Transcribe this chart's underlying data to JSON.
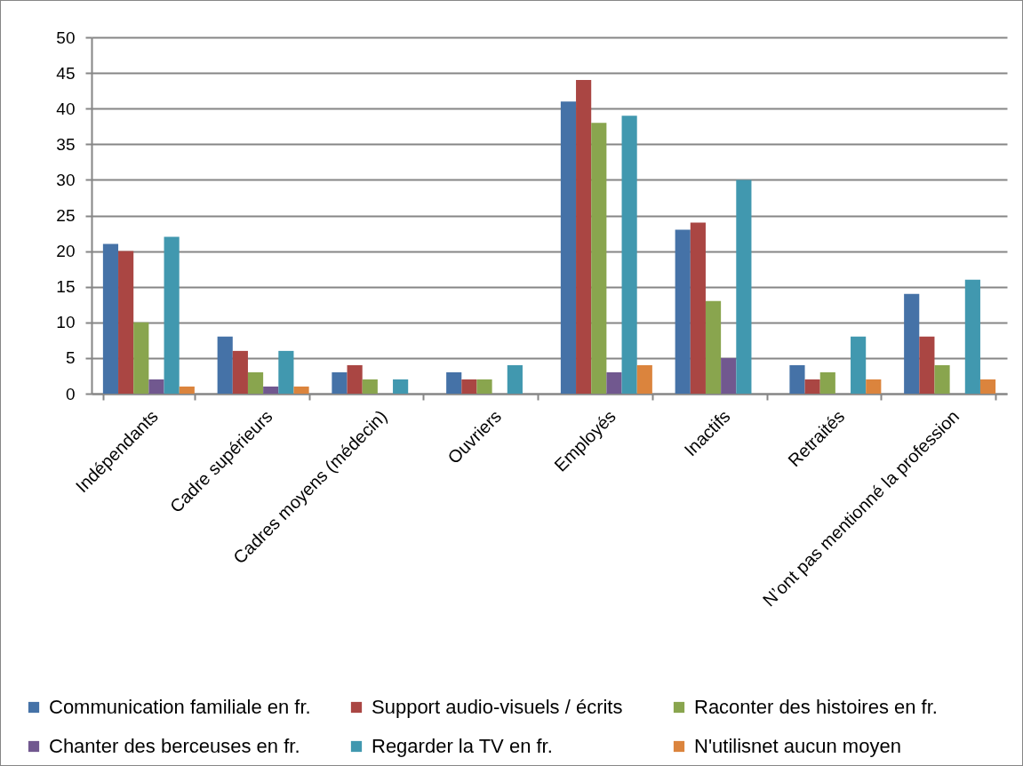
{
  "chart_data": {
    "type": "bar",
    "categories": [
      "Indépendants",
      "Cadre supérieurs",
      "Cadres moyens (médecin)",
      "Ouvriers",
      "Employés",
      "Inactifs",
      "Retraités",
      "N’ont pas mentionné  la profession"
    ],
    "series": [
      {
        "name": "Communication familiale en fr.",
        "color": "#4572a7",
        "values": [
          21,
          8,
          3,
          3,
          41,
          23,
          4,
          14
        ]
      },
      {
        "name": "Support audio-visuels / écrits",
        "color": "#aa4643",
        "values": [
          20,
          6,
          4,
          2,
          44,
          24,
          2,
          8
        ]
      },
      {
        "name": "Raconter des histoires en fr.",
        "color": "#89a54e",
        "values": [
          10,
          3,
          2,
          2,
          38,
          13,
          3,
          4
        ]
      },
      {
        "name": "Chanter des berceuses en fr.",
        "color": "#71588f",
        "values": [
          2,
          1,
          null,
          null,
          3,
          5,
          null,
          null
        ]
      },
      {
        "name": "Regarder la TV en fr.",
        "color": "#4198af",
        "values": [
          22,
          6,
          2,
          4,
          39,
          30,
          8,
          16
        ]
      },
      {
        "name": "N'utilisnet aucun moyen",
        "color": "#db843d",
        "values": [
          1,
          1,
          null,
          null,
          4,
          null,
          2,
          2
        ]
      }
    ],
    "ylim": [
      0,
      50
    ],
    "yticks": [
      0,
      5,
      10,
      15,
      20,
      25,
      30,
      35,
      40,
      45,
      50
    ],
    "grid": "y",
    "legend": "bottom"
  }
}
